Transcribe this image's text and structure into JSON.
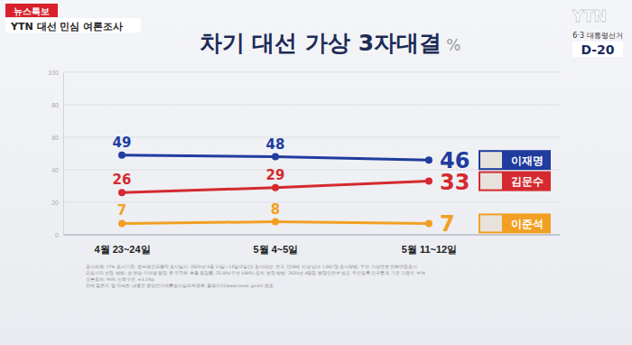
{
  "header": {
    "badge": "뉴스특보",
    "program": "YTN 대선 민심 여론조사",
    "logo": "YTN",
    "event": "6·3 대통령선거",
    "countdown": "D-20"
  },
  "chart_data": {
    "type": "line",
    "title": "차기 대선 가상 3자대결",
    "ylabel": "%",
    "categories": [
      "4월 23~24일",
      "5월 4~5일",
      "5월 11~12일"
    ],
    "series": [
      {
        "name": "이재명",
        "color": "#1f3c9e",
        "values": [
          49,
          48,
          46
        ],
        "marker": "circle"
      },
      {
        "name": "김문수",
        "color": "#d42a2f",
        "values": [
          26,
          29,
          33
        ],
        "marker": "circle"
      },
      {
        "name": "이준석",
        "color": "#f2a023",
        "values": [
          7,
          8,
          7
        ],
        "marker": "circle"
      }
    ],
    "ylim": [
      0,
      100
    ],
    "yticks": [
      0,
      20,
      40,
      60,
      80,
      100
    ],
    "grid": true,
    "data_labels": true,
    "legend": "right"
  },
  "footnote": [
    "조사의뢰: YTN   조사기관: 엠브레인퍼블릭   조사일시: 2025년 5월 11일~12일(2일간)   조사대상: 전국 만18세 이상 남녀 1,007명   조사방법: 무선 가상번호 전화면접조사",
    "피조사자 선정 방법: 성·연령·지역별 할당 후 무작위 추출   응답률: 22.0%(무선 100%)   오차 보정 방법: 2025년 4월말 행정안전부 발표 주민등록 인구통계 기준 가중치 부여",
    "표본오차: 95% 신뢰수준, ±3.1%p",
    "전체 질문지 및 자세한 내용은 중앙선거여론조사심의위원회 홈페이지(www.nesdc.go.kr) 참조"
  ]
}
